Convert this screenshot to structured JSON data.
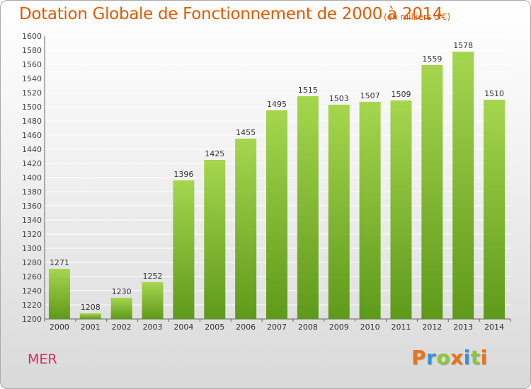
{
  "chart_data": {
    "type": "bar",
    "title": "Dotation Globale de Fonctionnement de 2000 à 2014",
    "subtitle": "(en milliers d'€)",
    "categories": [
      "2000",
      "2001",
      "2002",
      "2003",
      "2004",
      "2005",
      "2006",
      "2007",
      "2008",
      "2009",
      "2010",
      "2011",
      "2012",
      "2013",
      "2014"
    ],
    "values": [
      1271,
      1208,
      1230,
      1252,
      1396,
      1425,
      1455,
      1495,
      1515,
      1503,
      1507,
      1509,
      1559,
      1578,
      1510
    ],
    "ylim": [
      1200,
      1600
    ],
    "ytick_step": 20,
    "grid": true,
    "xlabel": "",
    "ylabel": "",
    "bar_color": "#7ab52e",
    "bar_color_light": "#a6d64e",
    "bar_color_dark": "#5e9a1a"
  },
  "footer": {
    "commune": "MER",
    "brand_letters": [
      {
        "char": "P",
        "color": "#e8731a"
      },
      {
        "char": "r",
        "color": "#3a8fd8"
      },
      {
        "char": "o",
        "color": "#8cc63f"
      },
      {
        "char": "x",
        "color": "#e8731a"
      },
      {
        "char": "i",
        "color": "#3a8fd8"
      },
      {
        "char": "t",
        "color": "#8cc63f"
      },
      {
        "char": "i",
        "color": "#e8731a"
      }
    ]
  }
}
